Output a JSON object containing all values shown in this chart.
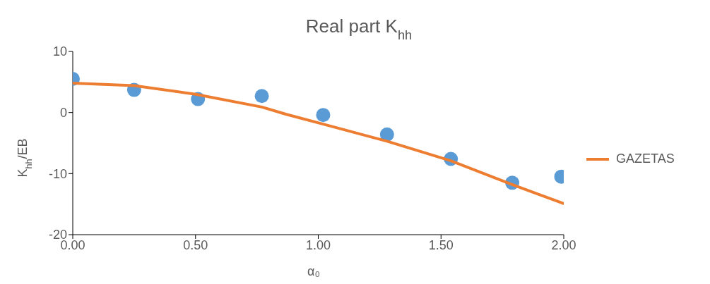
{
  "chart_data": {
    "type": "scatter",
    "title": "Real part K$_{hh}$",
    "xlabel": "α₀",
    "ylabel": "K$_{hh}$/EB",
    "xlim": [
      0,
      2
    ],
    "xticks": [
      {
        "value": 0,
        "label": "0.00"
      },
      {
        "value": 0.5,
        "label": "0.50"
      },
      {
        "value": 1,
        "label": "1.00"
      },
      {
        "value": 1.5,
        "label": "1.50"
      },
      {
        "value": 2,
        "label": "2.00"
      }
    ],
    "ylim": [
      -20,
      10
    ],
    "yticks": [
      -20,
      -10,
      0,
      10
    ],
    "grid": false,
    "legend": "right",
    "series": [
      {
        "color": "#5b9bd5",
        "marker": "circle",
        "x": [
          0,
          0.25,
          0.51,
          0.77,
          1.02,
          1.28,
          1.54,
          1.79,
          1.99
        ],
        "values": [
          5.5,
          3.7,
          2.2,
          2.7,
          -0.4,
          -3.6,
          -7.6,
          -11.5,
          -10.5
        ]
      },
      {
        "type": "line",
        "name": "GAZETAS",
        "color": "#ed7d31",
        "marker": "none",
        "x": [
          0,
          0.25,
          0.5,
          0.77,
          0.87,
          1.02,
          1.28,
          1.54,
          1.79,
          2.0
        ],
        "values": [
          4.8,
          4.4,
          3.0,
          0.9,
          -0.3,
          -1.9,
          -4.7,
          -7.9,
          -11.8,
          -14.9
        ]
      }
    ]
  }
}
